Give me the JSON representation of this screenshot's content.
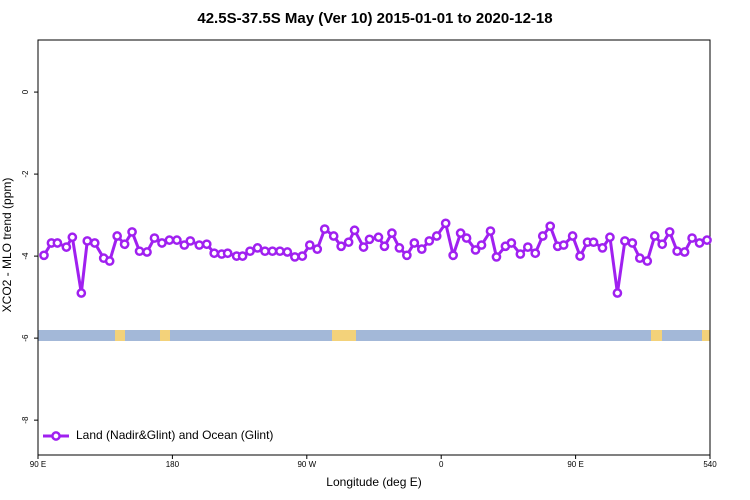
{
  "chart_data": {
    "type": "line",
    "title": "42.5S-37.5S May (Ver 10)   2015-01-01 to 2020-12-18",
    "x_label": "Longitude (deg E)",
    "y_label": "XCO2 - MLO trend (ppm)",
    "x": [
      94,
      99,
      103,
      109,
      113,
      119,
      123,
      128,
      134,
      138,
      143,
      148,
      153,
      158,
      163,
      168,
      173,
      178,
      183,
      188,
      192,
      198,
      203,
      208,
      213,
      217,
      223,
      227,
      232,
      237,
      242,
      247,
      252,
      257,
      262,
      267,
      272,
      277,
      282,
      288,
      293,
      298,
      302,
      308,
      312,
      318,
      322,
      327,
      332,
      337,
      342,
      347,
      352,
      357,
      363,
      368,
      373,
      377,
      383,
      387,
      393,
      397,
      403,
      407,
      413,
      418,
      423,
      428,
      433,
      438,
      442,
      448,
      453,
      458,
      462,
      468,
      473,
      478,
      483,
      488,
      493,
      498,
      503,
      508,
      513,
      518,
      523,
      528,
      533,
      538
    ],
    "series": [
      {
        "name": "Land (Nadir&Glint) and Ocean (Glint)",
        "color": "#a020f0",
        "values": [
          -3.98,
          -3.68,
          -3.68,
          -3.78,
          -3.54,
          -4.9,
          -3.63,
          -3.68,
          -4.05,
          -4.12,
          -3.51,
          -3.71,
          -3.41,
          -3.88,
          -3.9,
          -3.56,
          -3.68,
          -3.61,
          -3.61,
          -3.73,
          -3.63,
          -3.73,
          -3.71,
          -3.93,
          -3.95,
          -3.93,
          -4.0,
          -4.0,
          -3.88,
          -3.8,
          -3.88,
          -3.88,
          -3.88,
          -3.9,
          -4.02,
          -4.0,
          -3.73,
          -3.83,
          -3.34,
          -3.51,
          -3.76,
          -3.66,
          -3.37,
          -3.78,
          -3.59,
          -3.54,
          -3.76,
          -3.44,
          -3.8,
          -3.98,
          -3.68,
          -3.83,
          -3.63,
          -3.51,
          -3.2,
          -3.98,
          -3.44,
          -3.56,
          -3.85,
          -3.73,
          -3.39,
          -4.02,
          -3.76,
          -3.68,
          -3.95,
          -3.78,
          -3.93,
          -3.51,
          -3.27,
          -3.76,
          -3.73,
          -3.51,
          -4.0,
          -3.66,
          -3.66,
          -3.8,
          -3.54,
          -4.9,
          -3.63,
          -3.68,
          -4.05,
          -4.12,
          -3.51,
          -3.71,
          -3.41,
          -3.88,
          -3.9,
          -3.56,
          -3.68,
          -3.61
        ]
      }
    ],
    "xlim": [
      90,
      540
    ],
    "xticks": [
      {
        "value": 90,
        "label": "90 E"
      },
      180,
      {
        "value": 270,
        "label": "90 W"
      },
      {
        "value": 360,
        "label": "0"
      },
      {
        "value": 450,
        "label": "90 E"
      },
      540
    ],
    "ylim": [
      -8.85,
      1.27
    ],
    "yticks": [
      0,
      -2,
      -4,
      -6,
      -8
    ],
    "legend": "bottom-left"
  }
}
